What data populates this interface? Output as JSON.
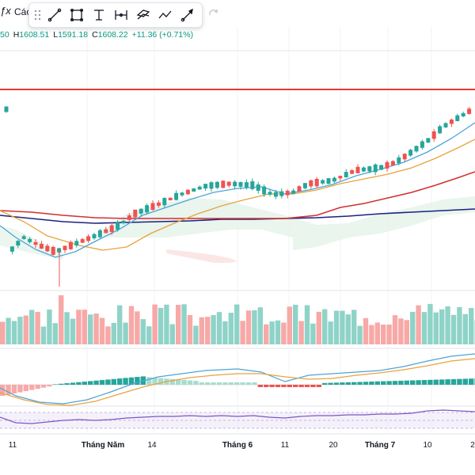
{
  "toolbar": {
    "fx_icon": "fx-icon",
    "fx_label": "Các",
    "tools": [
      "trend-line-icon",
      "rectangle-icon",
      "text-icon",
      "measure-icon",
      "brush-icon",
      "path-icon",
      "arrow-icon"
    ],
    "redo_icon": "redo-icon"
  },
  "ohlc": {
    "open_suffix": "50",
    "high_label": "H",
    "high": "1608.51",
    "low_label": "L",
    "low": "1591.18",
    "close_label": "C",
    "close": "1608.22",
    "change": "+11.36 (+0.71%)"
  },
  "x_axis": {
    "labels": [
      "11",
      "Tháng Năm",
      "14",
      "Tháng 6",
      "11",
      "20",
      "Tháng 7",
      "10",
      "2"
    ]
  },
  "colors": {
    "up": "#26a69a",
    "down": "#ef5350",
    "volume_up": "#8fd3c8",
    "volume_down": "#f7a9a7",
    "ma_fast": "#4da3d8",
    "ma_mid": "#e8a33d",
    "ma_slow": "#d32f2f",
    "ma_long": "#1a237e",
    "resistance": "#e53935",
    "rsi": "#7e57c2"
  },
  "chart_data": {
    "type": "candlestick",
    "resistance_line": 1,
    "candles_count": 80
  }
}
